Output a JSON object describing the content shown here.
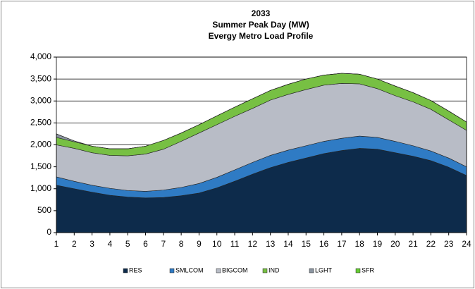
{
  "chart_data": {
    "type": "stacked_area",
    "title": [
      "2033",
      "Summer Peak Day (MW)",
      "Evergy Metro Load Profile"
    ],
    "categories": [
      "1",
      "2",
      "3",
      "4",
      "5",
      "6",
      "7",
      "8",
      "9",
      "10",
      "11",
      "12",
      "13",
      "14",
      "15",
      "16",
      "17",
      "18",
      "19",
      "20",
      "21",
      "22",
      "23",
      "24"
    ],
    "series": [
      {
        "name": "RES",
        "color": "#0d2b4b",
        "values": [
          1080,
          1000,
          920,
          850,
          810,
          790,
          800,
          840,
          900,
          1020,
          1170,
          1330,
          1480,
          1600,
          1700,
          1800,
          1870,
          1920,
          1900,
          1820,
          1740,
          1640,
          1490,
          1300
        ]
      },
      {
        "name": "SMLCOM",
        "color": "#2f7bc4",
        "values": [
          190,
          170,
          160,
          160,
          150,
          150,
          170,
          190,
          220,
          240,
          260,
          270,
          280,
          280,
          280,
          280,
          280,
          280,
          270,
          260,
          240,
          220,
          210,
          200
        ]
      },
      {
        "name": "BIGCOM",
        "color": "#b8bcc6",
        "values": [
          730,
          750,
          740,
          750,
          790,
          850,
          930,
          1050,
          1150,
          1200,
          1220,
          1230,
          1260,
          1270,
          1280,
          1280,
          1250,
          1190,
          1110,
          1040,
          1000,
          950,
          870,
          830
        ]
      },
      {
        "name": "IND",
        "color": "#77c043",
        "values": [
          170,
          150,
          150,
          150,
          160,
          180,
          200,
          190,
          190,
          200,
          210,
          220,
          220,
          230,
          240,
          230,
          230,
          220,
          220,
          220,
          210,
          200,
          200,
          190
        ]
      },
      {
        "name": "LGHT",
        "color": "#8a94a0",
        "values": [
          80,
          20,
          0,
          0,
          0,
          0,
          0,
          0,
          0,
          0,
          0,
          0,
          0,
          0,
          0,
          0,
          0,
          0,
          0,
          0,
          0,
          0,
          0,
          0
        ]
      },
      {
        "name": "SFR",
        "color": "#66cc33",
        "values": [
          0,
          0,
          0,
          0,
          0,
          0,
          0,
          0,
          0,
          0,
          0,
          0,
          0,
          0,
          0,
          0,
          0,
          0,
          0,
          0,
          0,
          0,
          0,
          0
        ]
      }
    ],
    "ylim": [
      0,
      4000
    ],
    "yticks": [
      0,
      500,
      {
        "value": 1000,
        "label": "1,000"
      },
      {
        "value": 1500,
        "label": "1,500"
      },
      {
        "value": 2000,
        "label": "2,000"
      },
      {
        "value": 2500,
        "label": "2,500"
      },
      {
        "value": 3000,
        "label": "3,000"
      },
      {
        "value": 3500,
        "label": "3,500"
      },
      {
        "value": 4000,
        "label": "4,000"
      }
    ],
    "grid": true,
    "legend": "bottom"
  }
}
